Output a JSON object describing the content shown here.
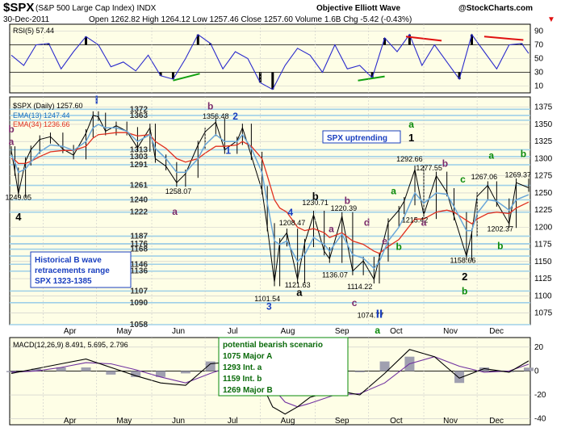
{
  "header": {
    "symbol": "$SPX",
    "name": "(S&P 500 Large Cap Index) INDX",
    "source": "Objective Elliott Wave",
    "copyright": "@StockCharts.com",
    "date": "30-Dec-2011",
    "ohlc": "Open 1262.82  High 1264.12  Low 1257.46  Close 1257.60  Volume 1.6B  Chg -5.42 (-0.43%)",
    "chg_arrow": "▼"
  },
  "colors": {
    "panel_bg": "#fefee6",
    "grid": "#c8c8c8",
    "price": "#000000",
    "ema13": "#6aa6d8",
    "ema34": "#e03020",
    "rsi": "#2b2bcc",
    "hline": "#9fd0e8",
    "wave_blue": "#1a3fbf",
    "wave_green": "#0a8a0a",
    "wave_purple": "#7a2a6a",
    "wave_black": "#000000",
    "trend_red": "#e01010",
    "trend_green": "#10a010",
    "macd": "#000000",
    "signal": "#7030a0",
    "hist": "#a0a0b0",
    "box_bg": "#ffffff"
  },
  "chart_data": [
    {
      "type": "line",
      "panel": "rsi",
      "title": "RSI(5) 57.44",
      "ylim": [
        0,
        100
      ],
      "yticks": [
        10,
        30,
        50,
        70,
        90
      ],
      "levels": [
        30,
        70
      ],
      "x": [
        "2011-03-14",
        "2011-03-21",
        "2011-03-28",
        "2011-04-04",
        "2011-04-11",
        "2011-04-18",
        "2011-04-25",
        "2011-05-02",
        "2011-05-09",
        "2011-05-16",
        "2011-05-23",
        "2011-05-30",
        "2011-06-06",
        "2011-06-13",
        "2011-06-20",
        "2011-06-27",
        "2011-07-04",
        "2011-07-11",
        "2011-07-18",
        "2011-07-25",
        "2011-08-01",
        "2011-08-08",
        "2011-08-15",
        "2011-08-22",
        "2011-08-29",
        "2011-09-05",
        "2011-09-12",
        "2011-09-19",
        "2011-09-26",
        "2011-10-03",
        "2011-10-10",
        "2011-10-17",
        "2011-10-24",
        "2011-10-31",
        "2011-11-07",
        "2011-11-14",
        "2011-11-21",
        "2011-11-28",
        "2011-12-05",
        "2011-12-12",
        "2011-12-19",
        "2011-12-26",
        "2011-12-30"
      ],
      "values": [
        55,
        40,
        70,
        72,
        35,
        60,
        82,
        70,
        38,
        45,
        32,
        55,
        25,
        20,
        50,
        85,
        72,
        35,
        60,
        50,
        15,
        5,
        40,
        65,
        55,
        30,
        70,
        35,
        40,
        22,
        80,
        60,
        85,
        40,
        70,
        45,
        20,
        85,
        60,
        35,
        70,
        72,
        57.44
      ]
    },
    {
      "type": "line",
      "panel": "price",
      "title": "$SPX (Daily) 1257.60",
      "legend": [
        "EMA(13) 1247.44",
        "EMA(34) 1236.66"
      ],
      "ylim": [
        1058,
        1390
      ],
      "yticks": [
        1075,
        1100,
        1125,
        1150,
        1175,
        1200,
        1225,
        1250,
        1275,
        1300,
        1325,
        1350,
        1375
      ],
      "xticks": [
        "Apr",
        "May",
        "Jun",
        "Jul",
        "Aug",
        "Sep",
        "Oct",
        "Nov",
        "Dec"
      ],
      "x": [
        "2011-03-14",
        "2011-03-16",
        "2011-03-18",
        "2011-03-22",
        "2011-03-25",
        "2011-03-30",
        "2011-04-05",
        "2011-04-12",
        "2011-04-18",
        "2011-04-25",
        "2011-04-29",
        "2011-05-02",
        "2011-05-06",
        "2011-05-12",
        "2011-05-18",
        "2011-05-24",
        "2011-05-31",
        "2011-06-03",
        "2011-06-09",
        "2011-06-15",
        "2011-06-20",
        "2011-06-27",
        "2011-07-01",
        "2011-07-07",
        "2011-07-12",
        "2011-07-19",
        "2011-07-22",
        "2011-07-27",
        "2011-08-02",
        "2011-08-05",
        "2011-08-09",
        "2011-08-12",
        "2011-08-16",
        "2011-08-22",
        "2011-08-26",
        "2011-08-31",
        "2011-09-06",
        "2011-09-09",
        "2011-09-16",
        "2011-09-22",
        "2011-09-28",
        "2011-10-04",
        "2011-10-07",
        "2011-10-12",
        "2011-10-18",
        "2011-10-21",
        "2011-10-27",
        "2011-11-01",
        "2011-11-08",
        "2011-11-14",
        "2011-11-18",
        "2011-11-25",
        "2011-11-28",
        "2011-12-01",
        "2011-12-07",
        "2011-12-12",
        "2011-12-19",
        "2011-12-23",
        "2011-12-30"
      ],
      "close": [
        1312,
        1281,
        1249,
        1296,
        1313,
        1328,
        1332,
        1314,
        1305,
        1337,
        1363,
        1361,
        1340,
        1348,
        1340,
        1316,
        1345,
        1300,
        1289,
        1265,
        1278,
        1320,
        1339,
        1353,
        1313,
        1326,
        1345,
        1304,
        1254,
        1200,
        1120,
        1178,
        1192,
        1124,
        1177,
        1218,
        1165,
        1154,
        1216,
        1136,
        1151,
        1124,
        1156,
        1207,
        1225,
        1238,
        1284,
        1218,
        1275,
        1251,
        1216,
        1158,
        1192,
        1245,
        1261,
        1236,
        1205,
        1265,
        1257.6
      ],
      "ema13": [
        1305,
        1295,
        1280,
        1285,
        1295,
        1310,
        1320,
        1318,
        1312,
        1325,
        1345,
        1350,
        1345,
        1345,
        1340,
        1325,
        1335,
        1315,
        1300,
        1280,
        1280,
        1300,
        1320,
        1335,
        1325,
        1325,
        1335,
        1315,
        1280,
        1235,
        1180,
        1175,
        1180,
        1150,
        1160,
        1185,
        1175,
        1165,
        1190,
        1160,
        1155,
        1140,
        1150,
        1180,
        1200,
        1215,
        1250,
        1235,
        1250,
        1248,
        1230,
        1195,
        1195,
        1220,
        1240,
        1238,
        1225,
        1240,
        1247.44
      ],
      "ema34": [
        1300,
        1298,
        1293,
        1293,
        1296,
        1303,
        1310,
        1312,
        1312,
        1318,
        1330,
        1335,
        1336,
        1338,
        1338,
        1333,
        1335,
        1325,
        1315,
        1300,
        1295,
        1300,
        1308,
        1318,
        1318,
        1320,
        1325,
        1318,
        1300,
        1275,
        1240,
        1228,
        1222,
        1200,
        1195,
        1198,
        1192,
        1185,
        1192,
        1180,
        1175,
        1165,
        1162,
        1172,
        1182,
        1192,
        1212,
        1212,
        1222,
        1225,
        1222,
        1210,
        1205,
        1212,
        1220,
        1222,
        1220,
        1228,
        1236.66
      ],
      "levels": [
        1372,
        1363,
        1356,
        1313,
        1303,
        1291,
        1261,
        1240,
        1222,
        1187,
        1176,
        1168,
        1158,
        1146,
        1136,
        1107,
        1090,
        1058
      ],
      "level_labels": [
        "1372",
        "1363",
        "1313",
        "1303",
        "1291",
        "1261",
        "1240",
        "1222",
        "1187",
        "1176",
        "1168",
        "1146",
        "1136",
        "1107",
        "1090",
        "1058"
      ],
      "annotations": [
        {
          "text": "1249.05",
          "x": "2011-03-18",
          "y": 1240
        },
        {
          "text": "1356.48",
          "x": "2011-07-07",
          "y": 1358
        },
        {
          "text": "1258.07",
          "x": "2011-06-16",
          "y": 1249
        },
        {
          "text": "1208.47",
          "x": "2011-08-19",
          "y": 1203
        },
        {
          "text": "1230.71",
          "x": "2011-09-01",
          "y": 1232
        },
        {
          "text": "1220.39",
          "x": "2011-09-17",
          "y": 1224
        },
        {
          "text": "1121.63",
          "x": "2011-08-22",
          "y": 1112
        },
        {
          "text": "1101.54",
          "x": "2011-08-05",
          "y": 1092
        },
        {
          "text": "1136.07",
          "x": "2011-09-12",
          "y": 1127
        },
        {
          "text": "1114.22",
          "x": "2011-09-26",
          "y": 1110
        },
        {
          "text": "1074.77",
          "x": "2011-10-02",
          "y": 1068
        },
        {
          "text": "1292.66",
          "x": "2011-10-24",
          "y": 1296
        },
        {
          "text": "1277.55",
          "x": "2011-11-04",
          "y": 1283
        },
        {
          "text": "1215.42",
          "x": "2011-10-27",
          "y": 1207
        },
        {
          "text": "1158.66",
          "x": "2011-11-23",
          "y": 1148
        },
        {
          "text": "1267.06",
          "x": "2011-12-05",
          "y": 1270
        },
        {
          "text": "1202.37",
          "x": "2011-12-14",
          "y": 1194
        },
        {
          "text": "1269.37",
          "x": "2011-12-24",
          "y": 1273
        }
      ],
      "waves": [
        {
          "text": "I",
          "color": "blue",
          "x": "2011-05-01",
          "y": 1380
        },
        {
          "text": "b",
          "color": "purple",
          "x": "2011-07-04",
          "y": 1372
        },
        {
          "text": "2",
          "color": "blue",
          "x": "2011-07-18",
          "y": 1357
        },
        {
          "text": "1",
          "color": "blue",
          "x": "2011-07-14",
          "y": 1307
        },
        {
          "text": "b",
          "color": "purple",
          "x": "2011-03-14",
          "y": 1338
        },
        {
          "text": "a",
          "color": "purple",
          "x": "2011-03-14",
          "y": 1320
        },
        {
          "text": "4",
          "color": "black",
          "x": "2011-03-18",
          "y": 1210
        },
        {
          "text": "a",
          "color": "purple",
          "x": "2011-06-14",
          "y": 1218
        },
        {
          "text": "4",
          "color": "blue",
          "x": "2011-08-18",
          "y": 1217
        },
        {
          "text": "b",
          "color": "black",
          "x": "2011-09-01",
          "y": 1240
        },
        {
          "text": "b",
          "color": "purple",
          "x": "2011-09-19",
          "y": 1234
        },
        {
          "text": "d",
          "color": "purple",
          "x": "2011-09-30",
          "y": 1202
        },
        {
          "text": "a",
          "color": "purple",
          "x": "2011-09-10",
          "y": 1193
        },
        {
          "text": "e",
          "color": "purple",
          "x": "2011-10-10",
          "y": 1175
        },
        {
          "text": "c",
          "color": "purple",
          "x": "2011-09-23",
          "y": 1085
        },
        {
          "text": "a",
          "color": "black",
          "x": "2011-08-23",
          "y": 1100
        },
        {
          "text": "3",
          "color": "blue",
          "x": "2011-08-06",
          "y": 1080
        },
        {
          "text": "II",
          "color": "blue",
          "x": "2011-10-07",
          "y": 1068
        },
        {
          "text": "a",
          "color": "green",
          "x": "2011-10-06",
          "y": 1045
        },
        {
          "text": "a",
          "color": "green",
          "x": "2011-10-15",
          "y": 1248
        },
        {
          "text": "b",
          "color": "green",
          "x": "2011-10-18",
          "y": 1167
        },
        {
          "text": "a",
          "color": "green",
          "x": "2011-10-25",
          "y": 1345
        },
        {
          "text": "1",
          "color": "black",
          "x": "2011-10-25",
          "y": 1325
        },
        {
          "text": "b",
          "color": "purple",
          "x": "2011-11-13",
          "y": 1288
        },
        {
          "text": "a",
          "color": "purple",
          "x": "2011-11-01",
          "y": 1202
        },
        {
          "text": "c",
          "color": "green",
          "x": "2011-11-23",
          "y": 1265
        },
        {
          "text": "2",
          "color": "black",
          "x": "2011-11-24",
          "y": 1123
        },
        {
          "text": "b",
          "color": "green",
          "x": "2011-11-24",
          "y": 1102
        },
        {
          "text": "a",
          "color": "green",
          "x": "2011-12-09",
          "y": 1300
        },
        {
          "text": "b",
          "color": "green",
          "x": "2011-12-27",
          "y": 1302
        },
        {
          "text": "b",
          "color": "green",
          "x": "2011-12-14",
          "y": 1168
        }
      ],
      "boxes": {
        "uptrend": "SPX uptrending",
        "historical": [
          "Historical B wave",
          "retracements range",
          "SPX 1323-1385"
        ]
      }
    },
    {
      "type": "line",
      "panel": "macd",
      "title": "MACD(12,26,9) 8.491, 5.695, 2.796",
      "ylim": [
        -45,
        28
      ],
      "yticks": [
        -40,
        -20,
        0,
        20
      ],
      "x": [
        "2011-03-14",
        "2011-03-28",
        "2011-04-11",
        "2011-04-25",
        "2011-05-09",
        "2011-05-23",
        "2011-06-06",
        "2011-06-20",
        "2011-07-04",
        "2011-07-18",
        "2011-08-01",
        "2011-08-08",
        "2011-08-15",
        "2011-08-22",
        "2011-08-29",
        "2011-09-12",
        "2011-09-26",
        "2011-10-10",
        "2011-10-24",
        "2011-11-07",
        "2011-11-21",
        "2011-12-05",
        "2011-12-19",
        "2011-12-30"
      ],
      "macd": [
        -2,
        2,
        6,
        10,
        3,
        -4,
        -10,
        -12,
        6,
        8,
        -8,
        -30,
        -36,
        -30,
        -22,
        -16,
        -20,
        -2,
        18,
        12,
        -6,
        2,
        -1,
        8.491
      ],
      "signal": [
        -1,
        0,
        3,
        7,
        6,
        1,
        -5,
        -10,
        -2,
        5,
        0,
        -14,
        -26,
        -30,
        -27,
        -20,
        -19,
        -10,
        6,
        12,
        4,
        -1,
        0,
        5.695
      ],
      "box": [
        "potential bearish scenario",
        "1075 Major A",
        "1293 Int. a",
        "1159 Int. b",
        "1269 Major B"
      ]
    }
  ]
}
